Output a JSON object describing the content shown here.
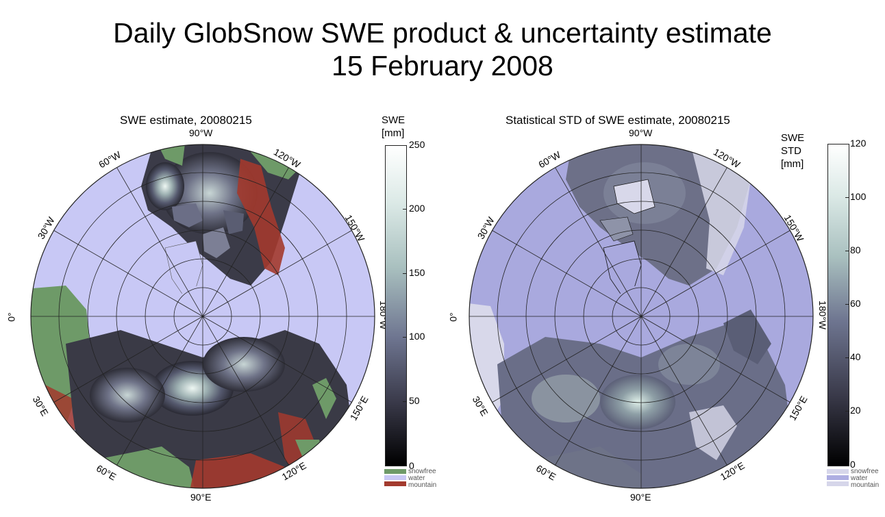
{
  "page": {
    "title_line1": "Daily GlobSnow SWE product & uncertainty estimate",
    "title_line2": "15 February 2008"
  },
  "left_map": {
    "title": "SWE estimate, 20080215",
    "longitude_labels": {
      "lon_90w": "90°W",
      "lon_120w": "120°W",
      "lon_150w": "150°W",
      "lon_180w": "180°W",
      "lon_150e": "150°E",
      "lon_120e": "120°E",
      "lon_90e": "90°E",
      "lon_60e": "60°E",
      "lon_30e": "30°E",
      "lon_0": "0°",
      "lon_30w": "30°W",
      "lon_60w": "60°W"
    },
    "colorbar": {
      "title_line1": "SWE",
      "title_line2": "[mm]",
      "ticks": [
        "250",
        "200",
        "150",
        "100",
        "50",
        "0"
      ],
      "categories": [
        "snowfree",
        "water",
        "mountain"
      ],
      "category_colors": [
        "#6e9a68",
        "#c8c8f5",
        "#a33a2e"
      ]
    },
    "colors": {
      "water": "#c8c8f5",
      "snowfree": "#6e9a68",
      "mountain": "#a33a2e",
      "snow_dark": "#2b2b36",
      "snow_mid": "#6b6e86",
      "snow_light": "#e9f3ef"
    }
  },
  "right_map": {
    "title": "Statistical STD of SWE estimate, 20080215",
    "longitude_labels": {
      "lon_90w": "90°W",
      "lon_120w": "120°W",
      "lon_150w": "150°W",
      "lon_180w": "180°W",
      "lon_150e": "150°E",
      "lon_120e": "120°E",
      "lon_90e": "90°E",
      "lon_60e": "60°E",
      "lon_30e": "30°E",
      "lon_0": "0°",
      "lon_30w": "30°W",
      "lon_60w": "60°W"
    },
    "colorbar": {
      "title_line1": "SWE",
      "title_line2": "STD",
      "title_line3": "[mm]",
      "ticks": [
        "120",
        "100",
        "80",
        "60",
        "40",
        "20",
        "0"
      ],
      "categories": [
        "snowfree",
        "water",
        "mountain"
      ],
      "category_colors": [
        "#d6d6ea",
        "#aeaee2",
        "#d6d6ea"
      ]
    },
    "colors": {
      "water": "#a9a9de",
      "land_light": "#d8d8ea",
      "std_mid": "#747893",
      "std_light": "#dfeee9"
    }
  }
}
